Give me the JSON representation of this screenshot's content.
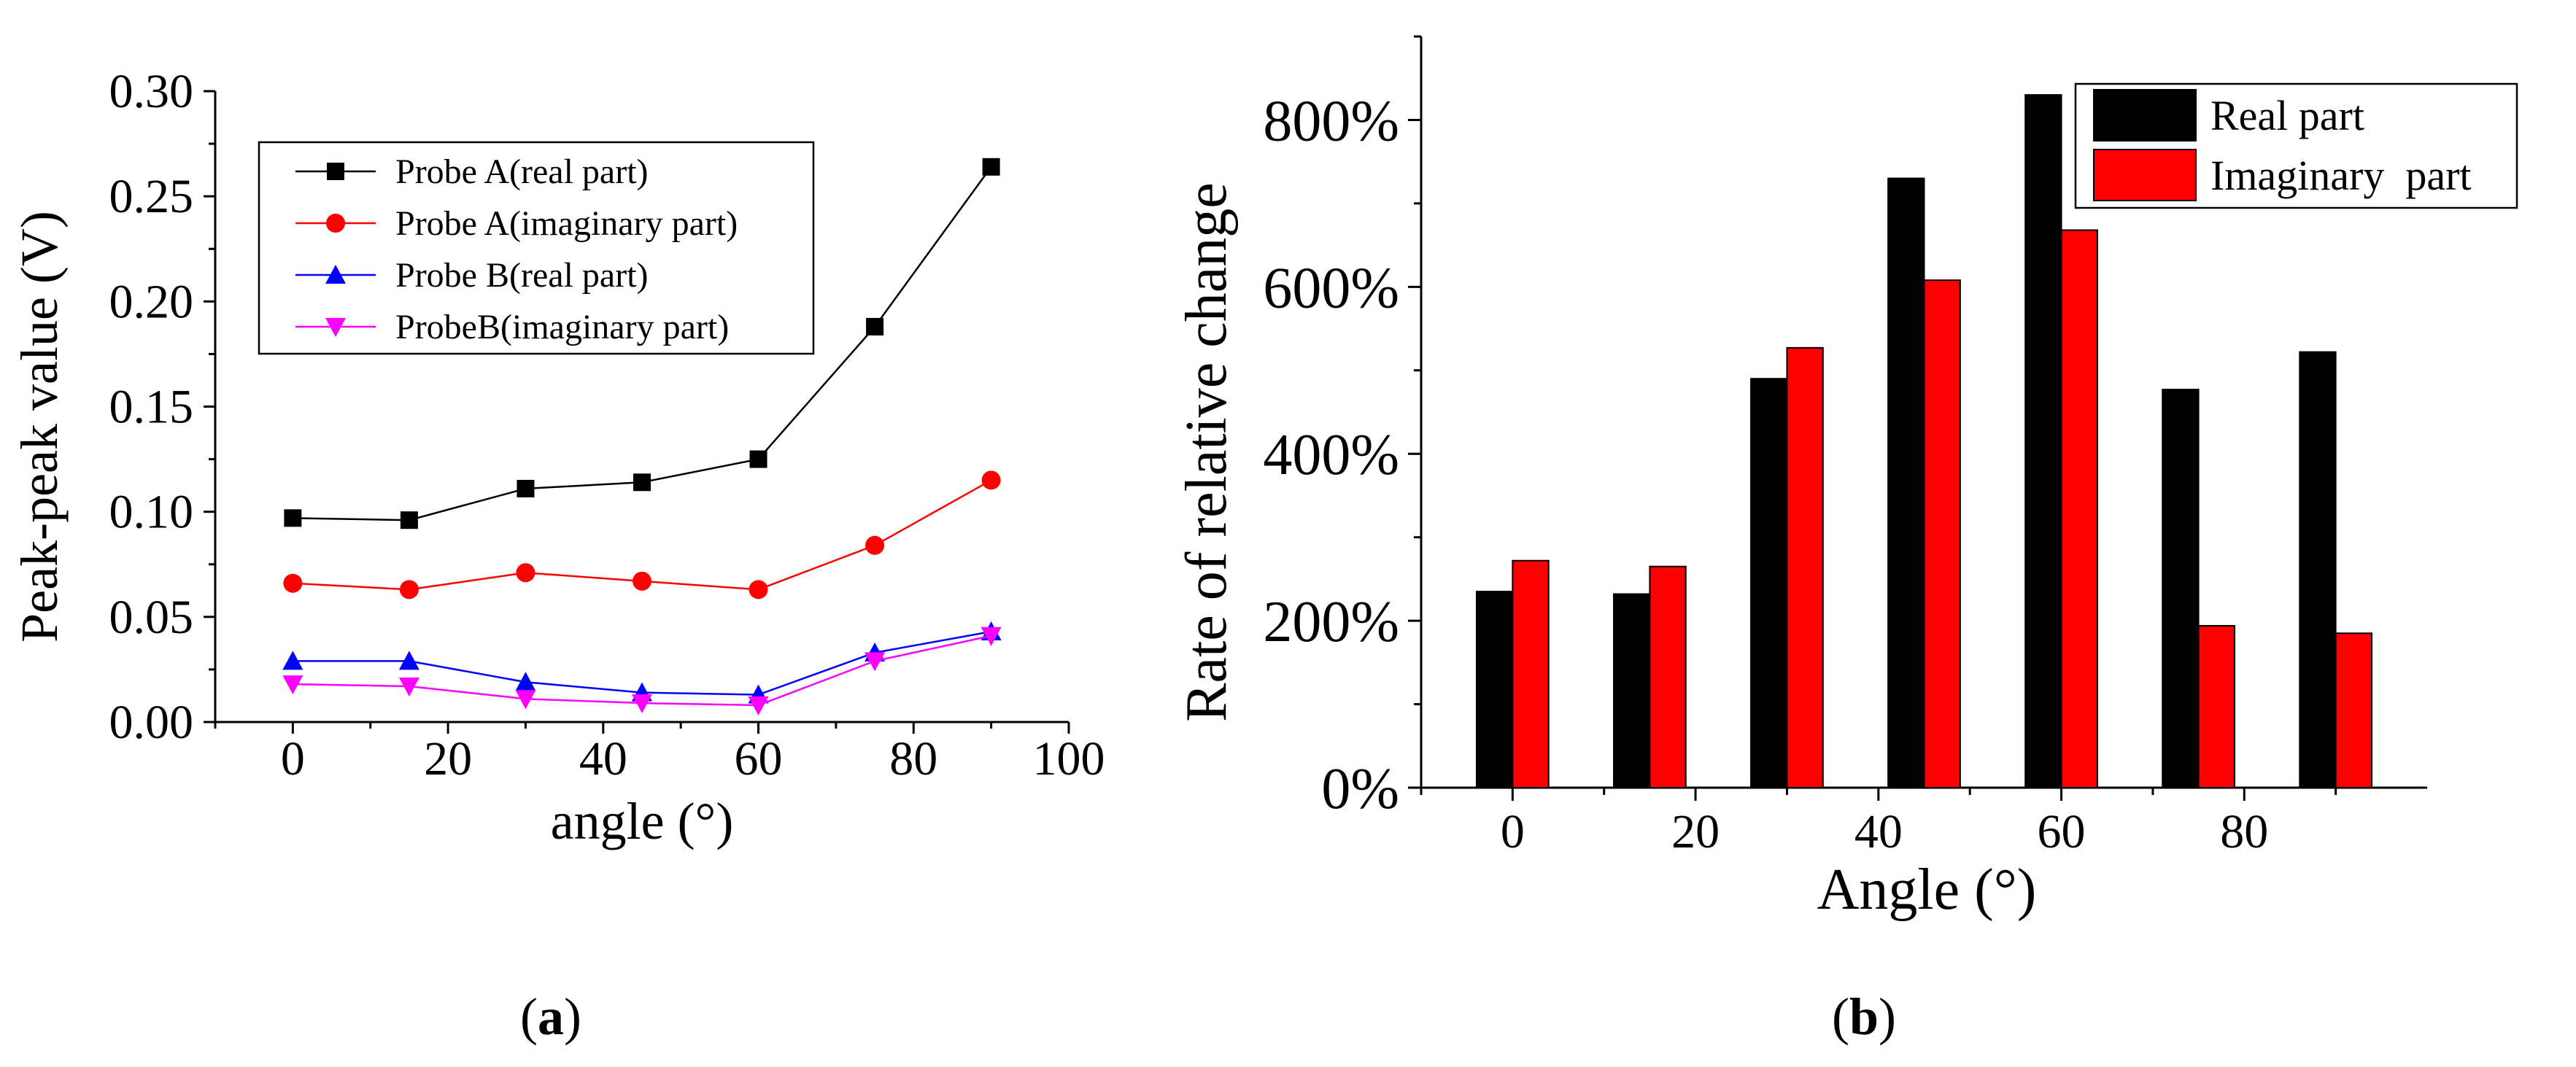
{
  "panels": {
    "a": {
      "label_open": "(",
      "label_letter": "a",
      "label_close": ")"
    },
    "b": {
      "label_open": "(",
      "label_letter": "b",
      "label_close": ")"
    }
  },
  "chart_data": [
    {
      "id": "a",
      "type": "line",
      "xlabel": "angle (°)",
      "ylabel": "Peak-peak value (V)",
      "xlim": [
        -10,
        100
      ],
      "ylim": [
        0,
        0.3
      ],
      "xticks": [
        0,
        20,
        40,
        60,
        80,
        100
      ],
      "xtick_labels": [
        "0",
        "20",
        "40",
        "60",
        "80",
        "100"
      ],
      "yticks": [
        0.0,
        0.05,
        0.1,
        0.15,
        0.2,
        0.25,
        0.3
      ],
      "ytick_labels": [
        "0.00",
        "0.05",
        "0.10",
        "0.15",
        "0.20",
        "0.25",
        "0.30"
      ],
      "x": [
        0,
        15,
        30,
        45,
        60,
        75,
        90
      ],
      "legend_position": "top-left",
      "series": [
        {
          "name": "Probe A(real part)",
          "marker": "square",
          "color": "#000000",
          "values": [
            0.097,
            0.096,
            0.111,
            0.114,
            0.125,
            0.188,
            0.264
          ]
        },
        {
          "name": "Probe A(imaginary part)",
          "marker": "circle",
          "color": "#ff0000",
          "values": [
            0.066,
            0.063,
            0.071,
            0.067,
            0.063,
            0.084,
            0.115
          ]
        },
        {
          "name": "Probe B(real part)",
          "marker": "triangle-up",
          "color": "#0000ff",
          "values": [
            0.029,
            0.029,
            0.019,
            0.014,
            0.013,
            0.033,
            0.043
          ]
        },
        {
          "name": "ProbeB(imaginary part)",
          "marker": "triangle-down",
          "color": "#ff00ff",
          "values": [
            0.018,
            0.017,
            0.011,
            0.009,
            0.008,
            0.029,
            0.041
          ]
        }
      ]
    },
    {
      "id": "b",
      "type": "bar",
      "xlabel": "Angle (°)",
      "ylabel": "Rate of relative change",
      "xlim": [
        -10,
        100
      ],
      "ylim": [
        0,
        900
      ],
      "xticks": [
        0,
        20,
        40,
        60,
        80
      ],
      "xtick_labels": [
        "0",
        "20",
        "40",
        "60",
        "80"
      ],
      "yticks": [
        0,
        200,
        400,
        600,
        800
      ],
      "ytick_labels": [
        "0%",
        "200%",
        "400%",
        "600%",
        "800%"
      ],
      "categories": [
        0,
        15,
        30,
        45,
        60,
        75,
        90
      ],
      "legend_position": "top-right",
      "series": [
        {
          "name": "Real part",
          "color": "#000000",
          "values": [
            235,
            232,
            490,
            730,
            830,
            477,
            522
          ]
        },
        {
          "name": "Imaginary  part",
          "color": "#ff0000",
          "values": [
            272,
            265,
            527,
            608,
            668,
            194,
            185
          ]
        }
      ]
    }
  ]
}
